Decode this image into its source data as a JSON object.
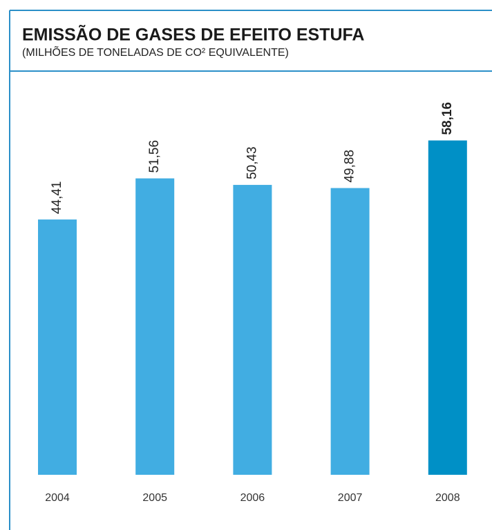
{
  "chart_data": {
    "type": "bar",
    "title": "EMISSÃO DE GASES DE EFEITO ESTUFA",
    "subtitle": "(MILHÕES DE TONELADAS DE CO² EQUIVALENTE)",
    "categories": [
      "2004",
      "2005",
      "2006",
      "2007",
      "2008"
    ],
    "values": [
      44.41,
      51.56,
      50.43,
      49.88,
      58.16
    ],
    "value_labels": [
      "44,41",
      "51,56",
      "50,43",
      "49,88",
      "58,16"
    ],
    "colors": [
      "#41ade2",
      "#41ade2",
      "#41ade2",
      "#41ade2",
      "#0090c6"
    ]
  }
}
